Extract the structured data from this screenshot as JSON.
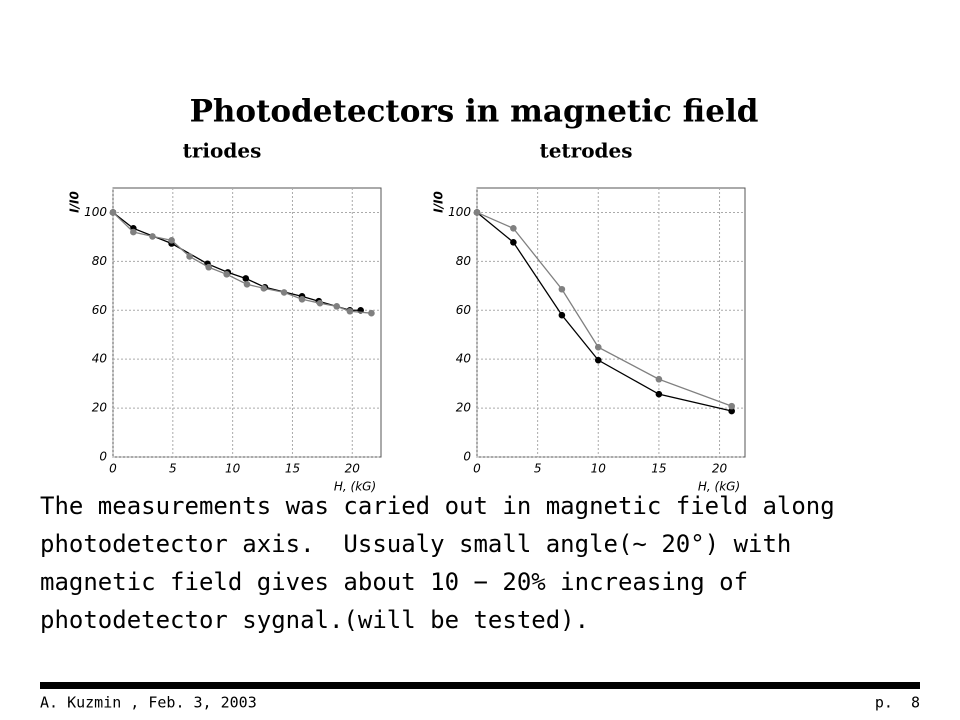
{
  "title": "Photodetectors in magnetic field",
  "chart_data": [
    {
      "type": "line",
      "title": "triodes",
      "y_label": "I/I0",
      "x_label": "H, (kG)",
      "xlim": [
        0,
        22.4
      ],
      "ylim": [
        0,
        110
      ],
      "xticks": [
        0,
        5,
        10,
        15,
        20
      ],
      "yticks": [
        0,
        20,
        40,
        60,
        80,
        100
      ],
      "grid": true,
      "series": [
        {
          "color": "#000000",
          "x": [
            0,
            1.7,
            4.9,
            7.9,
            9.6,
            11.1,
            12.7,
            15.8,
            17.2,
            19.8,
            20.7
          ],
          "values": [
            100,
            93.5,
            87.3,
            79,
            75.5,
            73,
            69.4,
            65.7,
            63.7,
            60,
            60
          ]
        },
        {
          "color": "#808080",
          "x": [
            0,
            1.7,
            3.3,
            4.9,
            6.4,
            8,
            9.5,
            11.2,
            12.6,
            14.3,
            15.8,
            17.3,
            18.7,
            19.8,
            21.6
          ],
          "values": [
            100,
            92,
            90.2,
            88.6,
            82,
            77.6,
            74.7,
            70.6,
            69,
            67.3,
            64.5,
            62.9,
            61.6,
            59.6,
            58.8
          ]
        }
      ]
    },
    {
      "type": "line",
      "title": "tetrodes",
      "y_label": "I/I0",
      "x_label": "H, (kG)",
      "xlim": [
        0,
        22.1
      ],
      "ylim": [
        0,
        110
      ],
      "xticks": [
        0,
        5,
        10,
        15,
        20
      ],
      "yticks": [
        0,
        20,
        40,
        60,
        80,
        100
      ],
      "grid": true,
      "series": [
        {
          "color": "#000000",
          "x": [
            0,
            3,
            7,
            10,
            15,
            21
          ],
          "values": [
            100,
            87.8,
            58,
            39.6,
            25.7,
            18.8
          ]
        },
        {
          "color": "#808080",
          "x": [
            0,
            3,
            7,
            10,
            15,
            21
          ],
          "values": [
            100,
            93.5,
            68.6,
            44.9,
            31.8,
            20.8
          ]
        }
      ]
    }
  ],
  "body": [
    "The measurements was caried out in magnetic field along",
    "photodetector axis.  Ussualy small angle(∼ 20°) with",
    "magnetic field gives about 10 − 20% increasing of",
    "photodetector sygnal.(will be tested)."
  ],
  "footer": {
    "left": "A. Kuzmin , Feb. 3, 2003",
    "right": "p.  8"
  }
}
